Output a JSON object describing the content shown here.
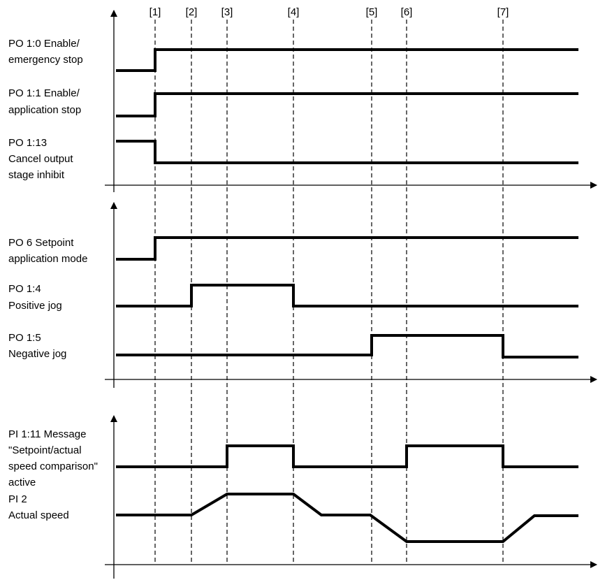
{
  "markers": [
    "[1]",
    "[2]",
    "[3]",
    "[4]",
    "[5]",
    "[6]",
    "[7]"
  ],
  "signals": [
    {
      "lines": [
        "PO 1:0 Enable/",
        "emergency stop"
      ]
    },
    {
      "lines": [
        "PO 1:1 Enable/",
        "application stop"
      ]
    },
    {
      "lines": [
        "PO 1:13",
        "Cancel output",
        "stage inhibit"
      ]
    },
    {
      "lines": [
        "PO 6 Setpoint",
        "application mode"
      ]
    },
    {
      "lines": [
        "PO 1:4",
        "Positive jog"
      ]
    },
    {
      "lines": [
        "PO 1:5",
        "Negative jog"
      ]
    },
    {
      "lines": [
        "PI 1:11 Message",
        "\"Setpoint/actual",
        "speed comparison\"",
        "active"
      ]
    },
    {
      "lines": [
        "PI 2",
        "Actual speed"
      ]
    }
  ]
}
